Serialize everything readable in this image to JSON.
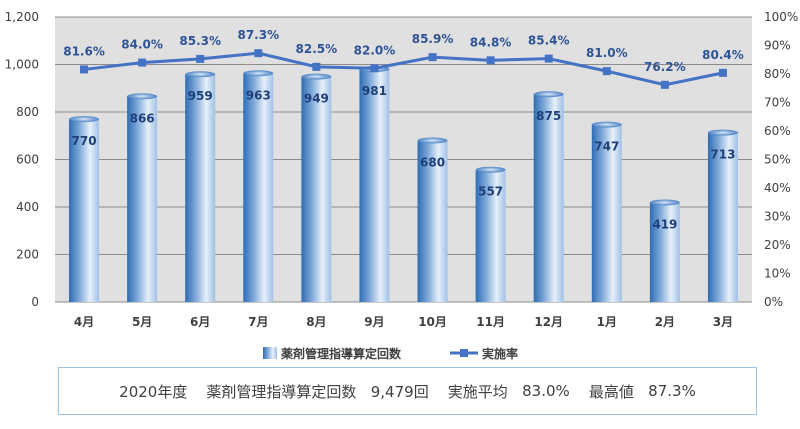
{
  "chart_data": {
    "type": "bar+line",
    "categories": [
      "4月",
      "5月",
      "6月",
      "7月",
      "8月",
      "9月",
      "10月",
      "11月",
      "12月",
      "1月",
      "2月",
      "3月"
    ],
    "series": [
      {
        "name": "薬剤管理指導算定回数",
        "type": "bar",
        "axis": "left",
        "values": [
          770,
          866,
          959,
          963,
          949,
          981,
          680,
          557,
          875,
          747,
          419,
          713
        ]
      },
      {
        "name": "実施率",
        "type": "line",
        "axis": "right",
        "values": [
          81.6,
          84.0,
          85.3,
          87.3,
          82.5,
          82.0,
          85.9,
          84.8,
          85.4,
          81.0,
          76.2,
          80.4
        ],
        "value_labels": [
          "81.6%",
          "84.0%",
          "85.3%",
          "87.3%",
          "82.5%",
          "82.0%",
          "85.9%",
          "84.8%",
          "85.4%",
          "81.0%",
          "76.2%",
          "80.4%"
        ]
      }
    ],
    "y_left": {
      "range": [
        0,
        1200
      ],
      "ticks": [
        "0",
        "200",
        "400",
        "600",
        "800",
        "1,000",
        "1,200"
      ]
    },
    "y_right": {
      "range": [
        0,
        100
      ],
      "ticks": [
        "0%",
        "10%",
        "20%",
        "30%",
        "40%",
        "50%",
        "60%",
        "70%",
        "80%",
        "90%",
        "100%"
      ]
    },
    "grid": "horizontal",
    "legend_position": "bottom",
    "colors": {
      "bar_dark": "#2e6db4",
      "bar_light": "#e6f0fa",
      "line": "#4472c4",
      "plot_bg": "#e0e0e0"
    }
  },
  "summary": {
    "year": "2020年度",
    "count_label": "薬剤管理指導算定回数",
    "count_value": "9,479回",
    "avg_label": "実施平均",
    "avg_value": "83.0%",
    "max_label": "最高値",
    "max_value": "87.3%"
  }
}
